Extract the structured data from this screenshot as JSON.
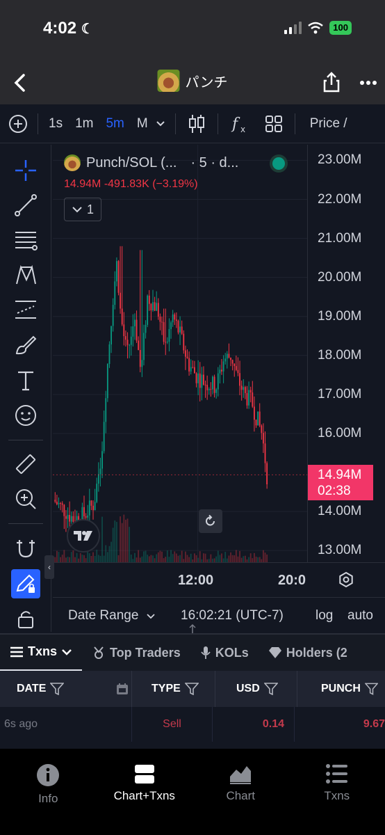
{
  "status": {
    "time": "4:02",
    "battery": "100"
  },
  "nav": {
    "title": "パンチ"
  },
  "toolbar": {
    "intervals": [
      "1s",
      "1m",
      "5m",
      "M"
    ],
    "active_interval": "5m",
    "price_label": "Price /"
  },
  "legend": {
    "symbol": "Punch/SOL (...",
    "interval_info": "· 5 · d...",
    "ohlc": "14.94M  -491.83K (−3.19%)",
    "indicator_count": "1"
  },
  "price_axis": {
    "labels": [
      "23.00M",
      "22.00M",
      "21.00M",
      "20.00M",
      "19.00M",
      "18.00M",
      "17.00M",
      "16.00M",
      "14.00M",
      "13.00M"
    ],
    "last_price": "14.94M",
    "countdown": "02:38"
  },
  "time_axis": {
    "labels": [
      "12:00",
      "20:0"
    ]
  },
  "range_bar": {
    "date_range": "Date Range",
    "clock": "16:02:21 (UTC-7)",
    "log": "log",
    "auto": "auto"
  },
  "tabs": [
    "Txns",
    "Top Traders",
    "KOLs",
    "Holders (2"
  ],
  "tx_table": {
    "headers": [
      "DATE",
      "TYPE",
      "USD",
      "PUNCH"
    ],
    "rows": [
      {
        "date": "6s  ago",
        "type": "Sell",
        "usd": "0.14",
        "punch": "9.67"
      }
    ]
  },
  "bottom_nav": [
    "Info",
    "Chart+Txns",
    "Chart",
    "Txns"
  ],
  "colors": {
    "up": "#089981",
    "down": "#f23645",
    "accent": "#2962ff",
    "last_price_bg": "#f23668"
  },
  "chart_data": {
    "type": "candlestick",
    "pair": "Punch/SOL",
    "interval": "5m",
    "ylim": [
      12.7,
      23.4
    ],
    "y_unit": "M",
    "grid": true,
    "path": [
      [
        0.0,
        14.3
      ],
      [
        0.05,
        14.0
      ],
      [
        0.08,
        13.8
      ],
      [
        0.12,
        13.9
      ],
      [
        0.16,
        14.2
      ],
      [
        0.19,
        15.5
      ],
      [
        0.21,
        17.5
      ],
      [
        0.235,
        19.5
      ],
      [
        0.25,
        20.4
      ],
      [
        0.265,
        19.0
      ],
      [
        0.29,
        18.0
      ],
      [
        0.32,
        19.0
      ],
      [
        0.345,
        17.5
      ],
      [
        0.37,
        19.5
      ],
      [
        0.41,
        19.2
      ],
      [
        0.44,
        18.2
      ],
      [
        0.47,
        19.0
      ],
      [
        0.5,
        18.5
      ],
      [
        0.53,
        17.8
      ],
      [
        0.56,
        17.5
      ],
      [
        0.6,
        17.3
      ],
      [
        0.64,
        17.2
      ],
      [
        0.67,
        17.9
      ],
      [
        0.7,
        18.0
      ],
      [
        0.72,
        17.5
      ],
      [
        0.75,
        17.0
      ],
      [
        0.78,
        16.8
      ],
      [
        0.8,
        16.4
      ],
      [
        0.82,
        16.0
      ],
      [
        0.83,
        15.5
      ],
      [
        0.84,
        14.94
      ]
    ],
    "spikes": [
      [
        0.265,
        20.8
      ],
      [
        0.345,
        20.7
      ],
      [
        0.44,
        19.2
      ]
    ]
  }
}
